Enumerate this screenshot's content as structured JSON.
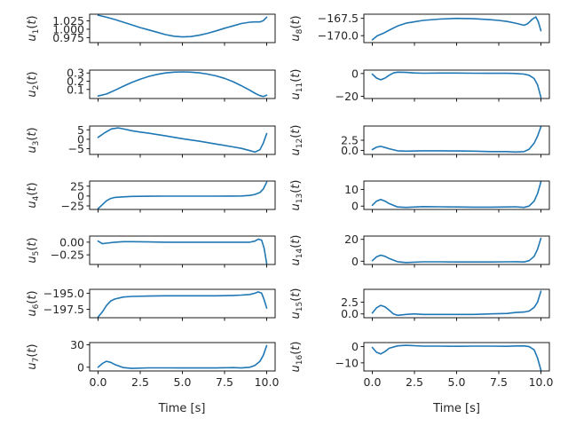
{
  "figure": {
    "xlabel": "Time [s]",
    "line_color": "#1f77b4"
  },
  "chart_data": [
    {
      "type": "line",
      "var": "u",
      "sub": "1",
      "ylabel": "u_1(t)",
      "xlim": [
        -0.5,
        10.5
      ],
      "ylim": [
        0.96,
        1.045
      ],
      "xticks": [
        0.0,
        2.5,
        5.0,
        7.5,
        10.0
      ],
      "xtick_labels": [
        "0.0",
        "2.5",
        "5.0",
        "7.5",
        "10.0"
      ],
      "yticks": [
        0.975,
        1.0,
        1.025
      ],
      "ytick_labels": [
        "0.975",
        "1.000",
        "1.025"
      ],
      "x": [
        0,
        0.5,
        1,
        1.5,
        2,
        2.5,
        3,
        3.5,
        4,
        4.5,
        5,
        5.5,
        6,
        6.5,
        7,
        7.5,
        8,
        8.5,
        9,
        9.3,
        9.6,
        9.8,
        10
      ],
      "y": [
        1.042,
        1.036,
        1.029,
        1.021,
        1.013,
        1.005,
        0.998,
        0.991,
        0.984,
        0.979,
        0.977,
        0.978,
        0.982,
        0.988,
        0.995,
        1.003,
        1.01,
        1.017,
        1.021,
        1.022,
        1.022,
        1.026,
        1.036
      ]
    },
    {
      "type": "line",
      "var": "u",
      "sub": "8",
      "ylabel": "u_8(t)",
      "xlim": [
        -0.5,
        10.5
      ],
      "ylim": [
        -171.0,
        -166.9
      ],
      "xticks": [
        0.0,
        2.5,
        5.0,
        7.5,
        10.0
      ],
      "xtick_labels": [
        "0.0",
        "2.5",
        "5.0",
        "7.5",
        "10.0"
      ],
      "yticks": [
        -170.0,
        -167.5
      ],
      "ytick_labels": [
        "−170.0",
        "−167.5"
      ],
      "x": [
        0,
        0.3,
        0.7,
        1,
        1.5,
        2,
        2.5,
        3,
        4,
        5,
        6,
        7,
        7.5,
        8,
        8.5,
        9,
        9.2,
        9.5,
        9.7,
        9.85,
        10
      ],
      "y": [
        -170.6,
        -170.0,
        -169.6,
        -169.2,
        -168.6,
        -168.2,
        -168.0,
        -167.8,
        -167.6,
        -167.5,
        -167.55,
        -167.7,
        -167.8,
        -167.95,
        -168.2,
        -168.5,
        -168.3,
        -167.6,
        -167.3,
        -168.0,
        -169.3
      ]
    },
    {
      "type": "line",
      "var": "u",
      "sub": "2",
      "ylabel": "u_2(t)",
      "xlim": [
        -0.5,
        10.5
      ],
      "ylim": [
        -0.01,
        0.335
      ],
      "xticks": [
        0.0,
        2.5,
        5.0,
        7.5,
        10.0
      ],
      "xtick_labels": [
        "0.0",
        "2.5",
        "5.0",
        "7.5",
        "10.0"
      ],
      "yticks": [
        0.1,
        0.2,
        0.3
      ],
      "ytick_labels": [
        "0.1",
        "0.2",
        "0.3"
      ],
      "x": [
        0,
        0.5,
        1,
        1.5,
        2,
        2.5,
        3,
        3.5,
        4,
        4.5,
        5,
        5.5,
        6,
        6.5,
        7,
        7.5,
        8,
        8.5,
        9,
        9.3,
        9.6,
        9.8,
        10
      ],
      "y": [
        0.02,
        0.045,
        0.09,
        0.14,
        0.185,
        0.225,
        0.258,
        0.283,
        0.3,
        0.31,
        0.313,
        0.31,
        0.302,
        0.287,
        0.265,
        0.235,
        0.195,
        0.145,
        0.09,
        0.055,
        0.025,
        0.015,
        0.03
      ]
    },
    {
      "type": "line",
      "var": "u",
      "sub": "11",
      "ylabel": "u_11(t)",
      "xlim": [
        -0.5,
        10.5
      ],
      "ylim": [
        -22.0,
        3.0
      ],
      "xticks": [
        0.0,
        2.5,
        5.0,
        7.5,
        10.0
      ],
      "xtick_labels": [
        "0.0",
        "2.5",
        "5.0",
        "7.5",
        "10.0"
      ],
      "yticks": [
        -20,
        0
      ],
      "ytick_labels": [
        "−20",
        "0"
      ],
      "x": [
        0,
        0.25,
        0.5,
        0.75,
        1,
        1.25,
        1.5,
        2,
        2.5,
        3,
        4,
        5,
        6,
        7,
        8,
        8.5,
        9,
        9.3,
        9.6,
        9.8,
        10
      ],
      "y": [
        -0.5,
        -4.0,
        -5.5,
        -4.0,
        -1.5,
        0.5,
        1.2,
        1.0,
        0.5,
        0.3,
        0.4,
        0.4,
        0.3,
        0.2,
        0.2,
        0.0,
        -0.5,
        -1.5,
        -4.5,
        -10.0,
        -21.0
      ]
    },
    {
      "type": "line",
      "var": "u",
      "sub": "3",
      "ylabel": "u_3(t)",
      "xlim": [
        -0.5,
        10.5
      ],
      "ylim": [
        -8.0,
        7.0
      ],
      "xticks": [
        0.0,
        2.5,
        5.0,
        7.5,
        10.0
      ],
      "xtick_labels": [
        "0.0",
        "2.5",
        "5.0",
        "7.5",
        "10.0"
      ],
      "yticks": [
        -5,
        0,
        5
      ],
      "ytick_labels": [
        "−5",
        "0",
        "5"
      ],
      "x": [
        0,
        0.4,
        0.8,
        1.2,
        1.6,
        2,
        2.5,
        3,
        4,
        5,
        6,
        7,
        8,
        8.5,
        9,
        9.3,
        9.6,
        9.8,
        10
      ],
      "y": [
        1.0,
        3.5,
        5.5,
        6.0,
        5.3,
        4.5,
        3.8,
        3.2,
        1.8,
        0.3,
        -1.0,
        -2.5,
        -4.0,
        -4.8,
        -6.0,
        -6.8,
        -5.5,
        -2.0,
        3.0
      ]
    },
    {
      "type": "line",
      "var": "u",
      "sub": "12",
      "ylabel": "u_12(t)",
      "xlim": [
        -0.5,
        10.5
      ],
      "ylim": [
        -1.0,
        6.0
      ],
      "xticks": [
        0.0,
        2.5,
        5.0,
        7.5,
        10.0
      ],
      "xtick_labels": [
        "0.0",
        "2.5",
        "5.0",
        "7.5",
        "10.0"
      ],
      "yticks": [
        0.0,
        2.5
      ],
      "ytick_labels": [
        "0.0",
        "2.5"
      ],
      "x": [
        0,
        0.25,
        0.5,
        0.75,
        1,
        1.5,
        2,
        3,
        4,
        5,
        6,
        7,
        8,
        8.5,
        9,
        9.3,
        9.6,
        9.8,
        10
      ],
      "y": [
        0.2,
        0.8,
        1.0,
        0.7,
        0.4,
        -0.1,
        -0.2,
        -0.1,
        -0.1,
        -0.15,
        -0.2,
        -0.3,
        -0.3,
        -0.4,
        -0.3,
        0.3,
        1.8,
        3.5,
        5.8
      ]
    },
    {
      "type": "line",
      "var": "u",
      "sub": "4",
      "ylabel": "u_4(t)",
      "xlim": [
        -0.5,
        10.5
      ],
      "ylim": [
        -34.0,
        38.0
      ],
      "xticks": [
        0.0,
        2.5,
        5.0,
        7.5,
        10.0
      ],
      "xtick_labels": [
        "0.0",
        "2.5",
        "5.0",
        "7.5",
        "10.0"
      ],
      "yticks": [
        -25,
        0,
        25
      ],
      "ytick_labels": [
        "−25",
        "0",
        "25"
      ],
      "x": [
        0,
        0.25,
        0.5,
        0.75,
        1,
        1.5,
        2,
        3,
        4,
        5,
        6,
        7,
        8,
        8.5,
        9,
        9.3,
        9.6,
        9.8,
        10
      ],
      "y": [
        -32.0,
        -22.0,
        -12.0,
        -6.0,
        -3.5,
        -2.0,
        -1.0,
        -0.5,
        -0.3,
        -0.2,
        -0.2,
        -0.2,
        -0.1,
        0.3,
        1.5,
        4.0,
        9.0,
        18.0,
        35.0
      ]
    },
    {
      "type": "line",
      "var": "u",
      "sub": "13",
      "ylabel": "u_13(t)",
      "xlim": [
        -0.5,
        10.5
      ],
      "ylim": [
        -2.0,
        15.0
      ],
      "xticks": [
        0.0,
        2.5,
        5.0,
        7.5,
        10.0
      ],
      "xtick_labels": [
        "0.0",
        "2.5",
        "5.0",
        "7.5",
        "10.0"
      ],
      "yticks": [
        0,
        10
      ],
      "ytick_labels": [
        "0",
        "10"
      ],
      "x": [
        0,
        0.25,
        0.5,
        0.75,
        1,
        1.5,
        2,
        3,
        4,
        5,
        6,
        7,
        8,
        8.5,
        9,
        9.3,
        9.6,
        9.8,
        10
      ],
      "y": [
        0.5,
        3.0,
        4.0,
        3.0,
        1.5,
        -0.5,
        -0.8,
        -0.3,
        -0.4,
        -0.5,
        -0.6,
        -0.6,
        -0.5,
        -0.4,
        -0.8,
        0.0,
        3.0,
        7.5,
        14.5
      ]
    },
    {
      "type": "line",
      "var": "u",
      "sub": "5",
      "ylabel": "u_5(t)",
      "xlim": [
        -0.5,
        10.5
      ],
      "ylim": [
        -0.44,
        0.12
      ],
      "xticks": [
        0.0,
        2.5,
        5.0,
        7.5,
        10.0
      ],
      "xtick_labels": [
        "0.0",
        "2.5",
        "5.0",
        "7.5",
        "10.0"
      ],
      "yticks": [
        -0.25,
        0.0
      ],
      "ytick_labels": [
        "−0.25",
        "0.00"
      ],
      "x": [
        0,
        0.25,
        0.5,
        1,
        1.5,
        2,
        3,
        4,
        5,
        6,
        7,
        8,
        8.5,
        9,
        9.3,
        9.5,
        9.7,
        9.85,
        10
      ],
      "y": [
        0.02,
        -0.03,
        -0.02,
        0.0,
        0.01,
        0.01,
        0.005,
        0.0,
        0.0,
        0.0,
        0.0,
        0.0,
        0.0,
        0.0,
        0.02,
        0.06,
        0.04,
        -0.12,
        -0.42
      ]
    },
    {
      "type": "line",
      "var": "u",
      "sub": "14",
      "ylabel": "u_14(t)",
      "xlim": [
        -0.5,
        10.5
      ],
      "ylim": [
        -3.0,
        23.0
      ],
      "xticks": [
        0.0,
        2.5,
        5.0,
        7.5,
        10.0
      ],
      "xtick_labels": [
        "0.0",
        "2.5",
        "5.0",
        "7.5",
        "10.0"
      ],
      "yticks": [
        0,
        20
      ],
      "ytick_labels": [
        "0",
        "20"
      ],
      "x": [
        0,
        0.25,
        0.5,
        0.75,
        1,
        1.5,
        2,
        3,
        4,
        5,
        6,
        7,
        8,
        8.5,
        9,
        9.3,
        9.6,
        9.8,
        10
      ],
      "y": [
        0.5,
        4.0,
        5.5,
        4.5,
        2.5,
        -0.5,
        -1.2,
        -0.6,
        -0.6,
        -0.7,
        -0.7,
        -0.7,
        -0.6,
        -0.5,
        -0.7,
        0.5,
        4.5,
        11.0,
        21.0
      ]
    },
    {
      "type": "line",
      "var": "u",
      "sub": "6",
      "ylabel": "u_6(t)",
      "xlim": [
        -0.5,
        10.5
      ],
      "ylim": [
        -198.8,
        -194.4
      ],
      "xticks": [
        0.0,
        2.5,
        5.0,
        7.5,
        10.0
      ],
      "xtick_labels": [
        "0.0",
        "2.5",
        "5.0",
        "7.5",
        "10.0"
      ],
      "yticks": [
        -197.5,
        -195.0
      ],
      "ytick_labels": [
        "−197.5",
        "−195.0"
      ],
      "x": [
        0,
        0.25,
        0.5,
        0.75,
        1,
        1.5,
        2,
        3,
        4,
        5,
        6,
        7,
        8,
        8.5,
        9,
        9.3,
        9.5,
        9.7,
        9.85,
        10
      ],
      "y": [
        -198.7,
        -197.9,
        -196.9,
        -196.2,
        -195.9,
        -195.6,
        -195.5,
        -195.45,
        -195.4,
        -195.4,
        -195.4,
        -195.4,
        -195.35,
        -195.3,
        -195.2,
        -195.0,
        -194.8,
        -195.0,
        -196.0,
        -197.3
      ]
    },
    {
      "type": "line",
      "var": "u",
      "sub": "15",
      "ylabel": "u_15(t)",
      "xlim": [
        -0.5,
        10.5
      ],
      "ylim": [
        -0.8,
        5.2
      ],
      "xticks": [
        0.0,
        2.5,
        5.0,
        7.5,
        10.0
      ],
      "xtick_labels": [
        "0.0",
        "2.5",
        "5.0",
        "7.5",
        "10.0"
      ],
      "yticks": [
        0.0,
        2.5
      ],
      "ytick_labels": [
        "0.0",
        "2.5"
      ],
      "x": [
        0,
        0.25,
        0.5,
        0.75,
        1,
        1.25,
        1.5,
        2,
        2.5,
        3,
        4,
        5,
        6,
        7,
        8,
        8.5,
        9,
        9.3,
        9.6,
        9.8,
        10
      ],
      "y": [
        0.2,
        1.3,
        1.8,
        1.5,
        0.8,
        0.0,
        -0.3,
        -0.1,
        0.0,
        -0.1,
        -0.1,
        -0.1,
        -0.1,
        0.0,
        0.1,
        0.3,
        0.4,
        0.6,
        1.4,
        2.5,
        4.8
      ]
    },
    {
      "type": "line",
      "var": "u",
      "sub": "7",
      "ylabel": "u_7(t)",
      "xlim": [
        -0.5,
        10.5
      ],
      "ylim": [
        -5.0,
        33.0
      ],
      "xticks": [
        0.0,
        2.5,
        5.0,
        7.5,
        10.0
      ],
      "xtick_labels": [
        "0.0",
        "2.5",
        "5.0",
        "7.5",
        "10.0"
      ],
      "yticks": [
        0,
        30
      ],
      "ytick_labels": [
        "0",
        "30"
      ],
      "x": [
        0,
        0.25,
        0.5,
        0.75,
        1,
        1.5,
        2,
        3,
        4,
        5,
        6,
        7,
        8,
        8.5,
        9,
        9.3,
        9.6,
        9.8,
        10
      ],
      "y": [
        0.0,
        5.0,
        8.0,
        6.5,
        3.5,
        -0.5,
        -1.5,
        -0.8,
        -0.9,
        -1.0,
        -1.0,
        -1.0,
        -0.5,
        -1.0,
        0.0,
        2.5,
        8.0,
        16.0,
        29.0
      ]
    },
    {
      "type": "line",
      "var": "u",
      "sub": "16",
      "ylabel": "u_16(t)",
      "xlim": [
        -0.5,
        10.5
      ],
      "ylim": [
        -15.0,
        2.5
      ],
      "xticks": [
        0.0,
        2.5,
        5.0,
        7.5,
        10.0
      ],
      "xtick_labels": [
        "0.0",
        "2.5",
        "5.0",
        "7.5",
        "10.0"
      ],
      "yticks": [
        -10,
        0
      ],
      "ytick_labels": [
        "−10",
        "0"
      ],
      "x": [
        0,
        0.25,
        0.5,
        0.75,
        1,
        1.5,
        2,
        3,
        4,
        5,
        6,
        7,
        8,
        8.5,
        9,
        9.3,
        9.6,
        9.8,
        10
      ],
      "y": [
        -0.5,
        -3.5,
        -4.5,
        -3.0,
        -1.0,
        0.5,
        0.8,
        0.3,
        0.3,
        0.2,
        0.3,
        0.3,
        0.2,
        0.4,
        0.5,
        0.0,
        -2.0,
        -7.0,
        -14.5
      ]
    }
  ]
}
